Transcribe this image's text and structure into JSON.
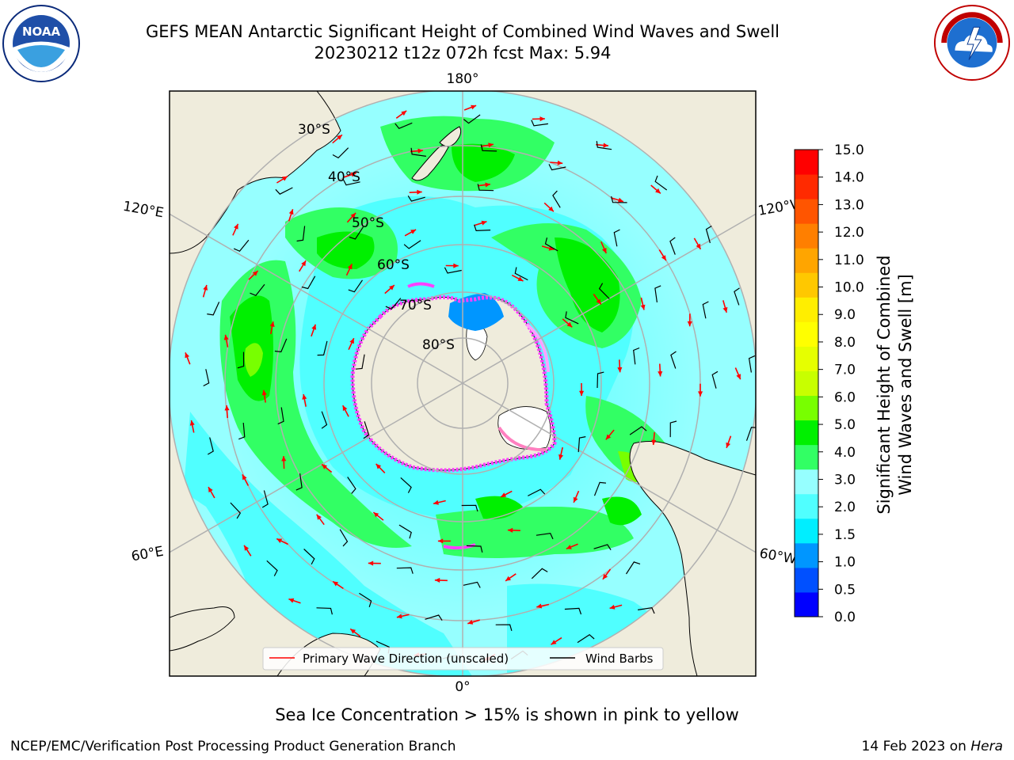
{
  "title_line1": "GEFS MEAN Antarctic Significant Height of Combined Wind Waves and Swell",
  "title_line2": "20230212 t12z 072h fcst   Max: 5.94",
  "logos": {
    "left": {
      "name": "NOAA",
      "ring_text": "NATIONAL OCEANIC AND ATMOSPHERIC ADMINISTRATION · U.S. DEPARTMENT OF COMMERCE"
    },
    "right": {
      "name": "NATIONAL WEATHER SERVICE"
    }
  },
  "map": {
    "projection": "south-polar-stereographic",
    "longitude_labels": [
      "180°",
      "120°E",
      "120°W",
      "60°E",
      "60°W",
      "0°"
    ],
    "latitude_labels": [
      "30°S",
      "40°S",
      "50°S",
      "60°S",
      "70°S",
      "80°S"
    ],
    "legend": {
      "primary_wave": "Primary Wave Direction (unscaled)",
      "wind_barbs": "Wind Barbs"
    }
  },
  "colorbar": {
    "label_line1": "Significant Height of Combined",
    "label_line2": "Wind Waves and Swell [m]",
    "ticks": [
      "15.0",
      "14.0",
      "13.0",
      "12.0",
      "11.0",
      "10.0",
      "9.0",
      "8.0",
      "7.0",
      "6.0",
      "5.0",
      "4.0",
      "3.0",
      "2.0",
      "1.5",
      "1.0",
      "0.5",
      "0.0"
    ],
    "colors_top_to_bottom": [
      "#ff0000",
      "#ff2a00",
      "#ff5500",
      "#ff7f00",
      "#ffa500",
      "#ffc800",
      "#ffee00",
      "#ffff00",
      "#e6ff00",
      "#c8ff00",
      "#78ff00",
      "#00f000",
      "#32ff64",
      "#96ffff",
      "#50ffff",
      "#00eeff",
      "#0096ff",
      "#0050ff",
      "#0000ff"
    ]
  },
  "note": "Sea Ice Concentration > 15% is shown in pink to yellow",
  "footer": {
    "left": "NCEP/EMC/Verification Post Processing Product Generation Branch",
    "right_date": "14 Feb 2023 on ",
    "right_system": "Hera"
  }
}
